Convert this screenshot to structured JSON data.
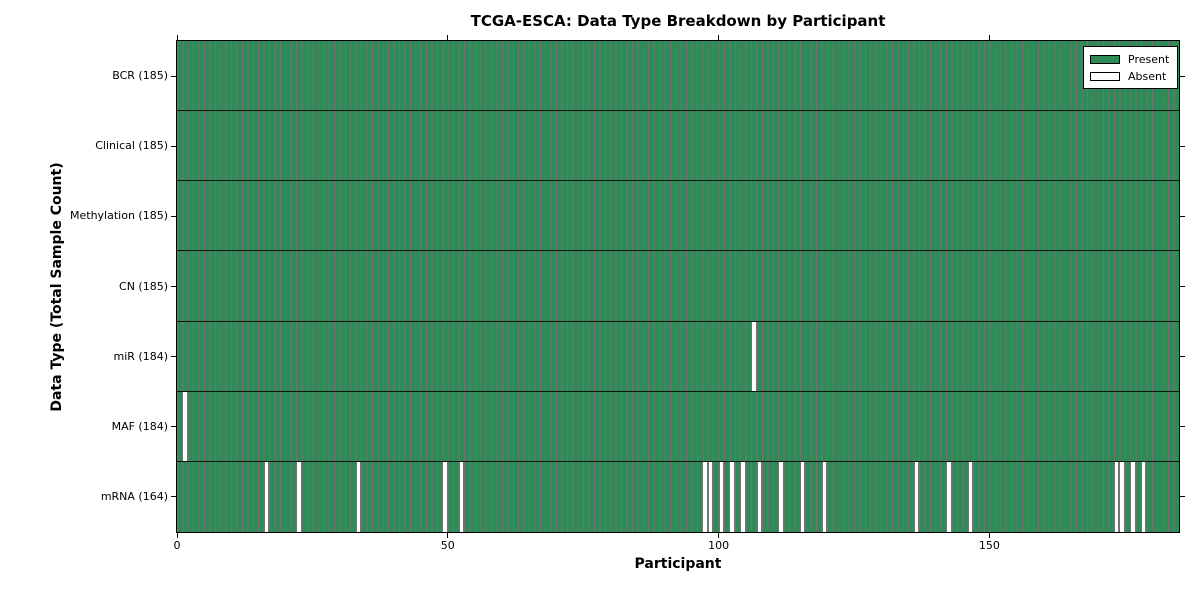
{
  "figure": {
    "title": "TCGA-ESCA: Data Type Breakdown by Participant",
    "xlabel": "Participant",
    "ylabel": "Data Type (Total Sample Count)"
  },
  "legend": {
    "items": [
      {
        "label": "Present",
        "color": "#2e8b57"
      },
      {
        "label": "Absent",
        "color": "#ffffff"
      }
    ],
    "position": "upper right"
  },
  "colors": {
    "present": "#2e8b57",
    "absent": "#ffffff",
    "cell_edge": "rgba(0,0,0,0.55)",
    "row_divider": "rgba(0,0,0,0.85)",
    "axis": "#000000"
  },
  "chart_data": {
    "type": "heatmap",
    "title": "TCGA-ESCA: Data Type Breakdown by Participant",
    "xlabel": "Participant",
    "ylabel": "Data Type (Total Sample Count)",
    "n_participants": 185,
    "xlim": [
      0,
      185
    ],
    "x_ticks": [
      "0",
      "50",
      "100",
      "150"
    ],
    "x_tick_values": [
      0,
      50,
      100,
      150
    ],
    "grid": false,
    "legend_entries": [
      "Present",
      "Absent"
    ],
    "legend_position": "upper right",
    "rows": [
      {
        "data_type": "BCR",
        "label": "BCR (185)",
        "present_count": 185,
        "absent_participants": []
      },
      {
        "data_type": "Clinical",
        "label": "Clinical (185)",
        "present_count": 185,
        "absent_participants": []
      },
      {
        "data_type": "Methylation",
        "label": "Methylation (185)",
        "present_count": 185,
        "absent_participants": []
      },
      {
        "data_type": "CN",
        "label": "CN (185)",
        "present_count": 185,
        "absent_participants": []
      },
      {
        "data_type": "miR",
        "label": "miR (184)",
        "present_count": 184,
        "absent_participants": [
          106
        ]
      },
      {
        "data_type": "MAF",
        "label": "MAF (184)",
        "present_count": 184,
        "absent_participants": [
          1
        ]
      },
      {
        "data_type": "mRNA",
        "label": "mRNA (164)",
        "present_count": 164,
        "absent_participants": [
          16,
          22,
          33,
          49,
          52,
          97,
          98,
          100,
          102,
          104,
          107,
          111,
          115,
          119,
          136,
          142,
          146,
          173,
          174,
          176,
          178
        ]
      }
    ]
  }
}
